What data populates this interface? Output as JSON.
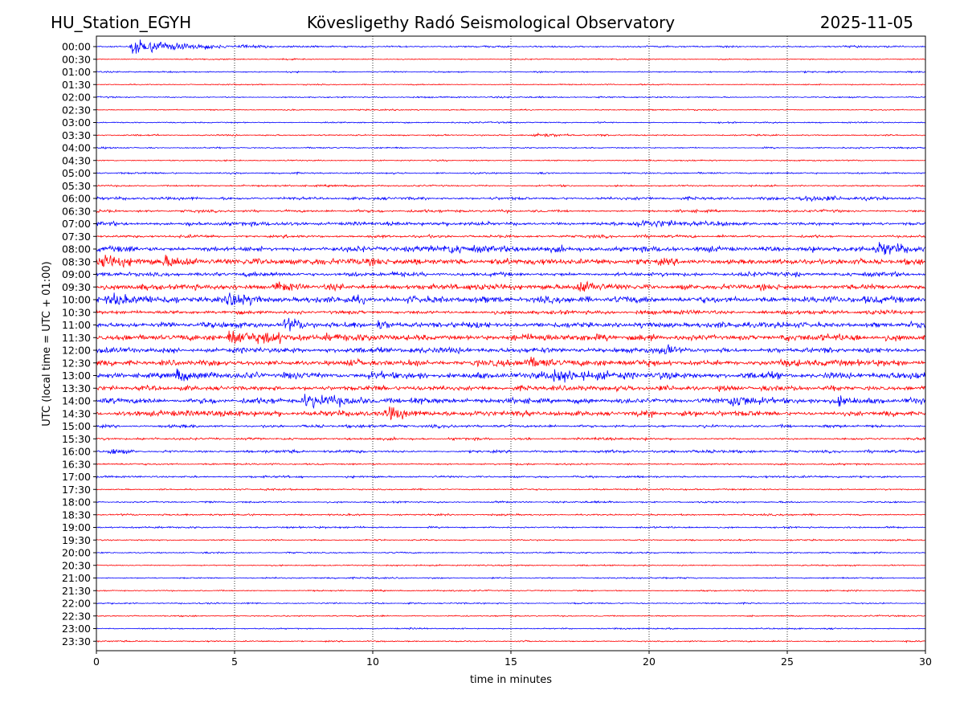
{
  "header": {
    "station": "HU_Station_EGYH",
    "observatory": "Kövesligethy Radó Seismological Observatory",
    "date": "2025-11-05"
  },
  "chart_data": {
    "type": "line",
    "title": "Kövesligethy Radó Seismological Observatory",
    "xlabel": "time in minutes",
    "ylabel": "UTC (local time = UTC + 01:00)",
    "xlim": [
      0,
      30
    ],
    "xticks": [
      0,
      5,
      10,
      15,
      20,
      25,
      30
    ],
    "xtick_labels": [
      "0",
      "5",
      "10",
      "15",
      "20",
      "25",
      "30"
    ],
    "grid": "vertical dotted at x ticks",
    "colors": {
      "even_rows": "#0000ff",
      "odd_rows": "#ff0000"
    },
    "rows": [
      "00:00",
      "00:30",
      "01:00",
      "01:30",
      "02:00",
      "02:30",
      "03:00",
      "03:30",
      "04:00",
      "04:30",
      "05:00",
      "05:30",
      "06:00",
      "06:30",
      "07:00",
      "07:30",
      "08:00",
      "08:30",
      "09:00",
      "09:30",
      "10:00",
      "10:30",
      "11:00",
      "11:30",
      "12:00",
      "12:30",
      "13:00",
      "13:30",
      "14:00",
      "14:30",
      "15:00",
      "15:30",
      "16:00",
      "16:30",
      "17:00",
      "17:30",
      "18:00",
      "18:30",
      "19:00",
      "19:30",
      "20:00",
      "20:30",
      "21:00",
      "21:30",
      "22:00",
      "22:30",
      "23:00",
      "23:30"
    ],
    "noise_level": [
      0.6,
      0.4,
      0.5,
      0.4,
      0.5,
      0.4,
      0.5,
      0.5,
      0.5,
      0.5,
      0.6,
      0.6,
      1.0,
      0.9,
      1.3,
      1.0,
      2.0,
      2.2,
      1.5,
      2.0,
      2.4,
      1.4,
      2.0,
      2.3,
      1.8,
      2.2,
      2.3,
      1.8,
      2.0,
      2.0,
      1.0,
      0.8,
      1.0,
      0.6,
      0.7,
      0.6,
      0.6,
      0.6,
      0.6,
      0.5,
      0.5,
      0.5,
      0.5,
      0.5,
      0.5,
      0.5,
      0.5,
      0.5
    ],
    "events": [
      {
        "row": "00:00",
        "t": 1.3,
        "amp": 7,
        "dur": 3.5
      },
      {
        "row": "03:30",
        "t": 15.8,
        "amp": 2.2,
        "dur": 2
      },
      {
        "row": "06:00",
        "t": 25.5,
        "amp": 2,
        "dur": 3
      },
      {
        "row": "07:00",
        "t": 19.5,
        "amp": 3,
        "dur": 3
      },
      {
        "row": "08:00",
        "t": 12.8,
        "amp": 5,
        "dur": 1
      },
      {
        "row": "08:00",
        "t": 28.2,
        "amp": 5,
        "dur": 1.5
      },
      {
        "row": "08:30",
        "t": 0.2,
        "amp": 4,
        "dur": 2
      },
      {
        "row": "08:30",
        "t": 2.5,
        "amp": 3,
        "dur": 1.5
      },
      {
        "row": "09:30",
        "t": 6.5,
        "amp": 4,
        "dur": 1
      },
      {
        "row": "09:30",
        "t": 17.5,
        "amp": 4,
        "dur": 1.5
      },
      {
        "row": "10:00",
        "t": 0.5,
        "amp": 5,
        "dur": 1.5
      },
      {
        "row": "10:00",
        "t": 4.8,
        "amp": 7,
        "dur": 1.2
      },
      {
        "row": "11:00",
        "t": 6.8,
        "amp": 5,
        "dur": 1.5
      },
      {
        "row": "11:00",
        "t": 10.2,
        "amp": 4,
        "dur": 1
      },
      {
        "row": "11:30",
        "t": 4.8,
        "amp": 6,
        "dur": 3
      },
      {
        "row": "12:00",
        "t": 20.5,
        "amp": 4,
        "dur": 0.8
      },
      {
        "row": "12:30",
        "t": 15.5,
        "amp": 4,
        "dur": 2
      },
      {
        "row": "13:00",
        "t": 2.9,
        "amp": 5,
        "dur": 1
      },
      {
        "row": "13:00",
        "t": 16.5,
        "amp": 4,
        "dur": 4
      },
      {
        "row": "14:00",
        "t": 7.5,
        "amp": 5,
        "dur": 2.5
      },
      {
        "row": "14:00",
        "t": 23.0,
        "amp": 6,
        "dur": 1.5
      },
      {
        "row": "14:00",
        "t": 26.8,
        "amp": 4,
        "dur": 1
      },
      {
        "row": "14:30",
        "t": 10.5,
        "amp": 4,
        "dur": 1.5
      },
      {
        "row": "16:00",
        "t": 0.5,
        "amp": 3,
        "dur": 0.7
      }
    ]
  }
}
